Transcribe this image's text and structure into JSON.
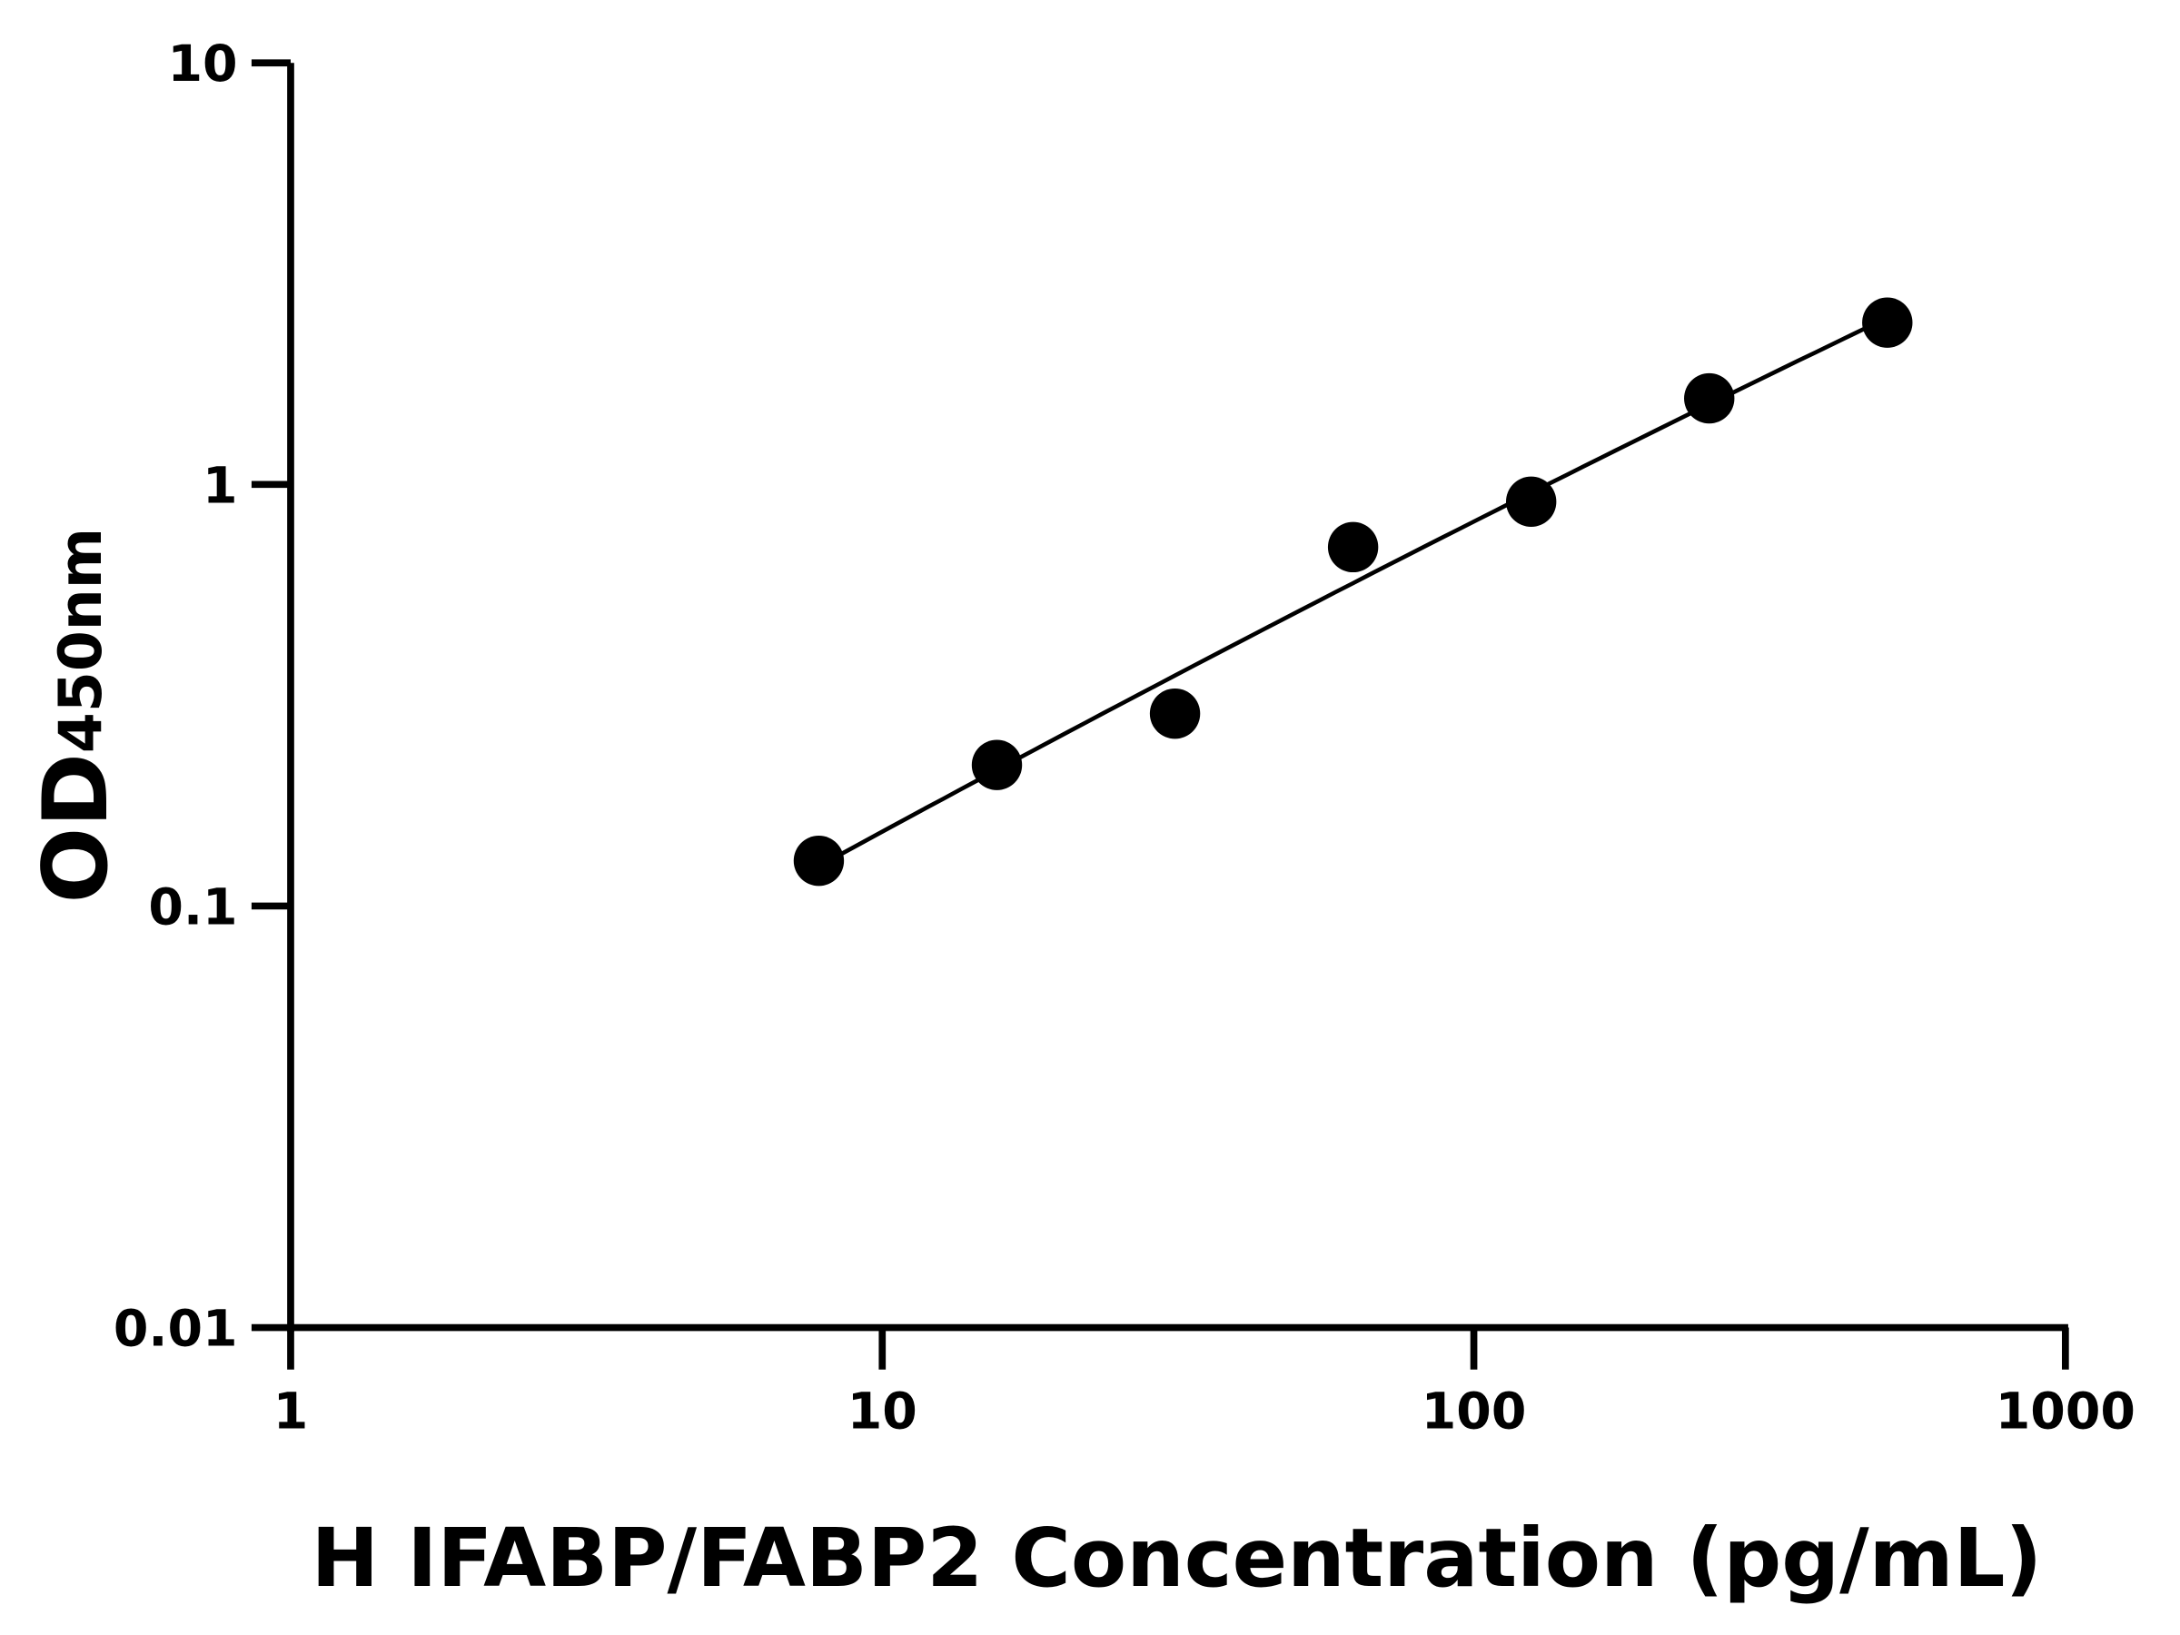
{
  "chart_data": {
    "type": "scatter",
    "title": "",
    "xlabel": "H IFABP/FABP2 Concentration (pg/mL)",
    "ylabel_main": "OD",
    "ylabel_sub": "450nm",
    "x_scale": "log",
    "y_scale": "log",
    "xlim": [
      1,
      1000
    ],
    "ylim": [
      0.01,
      10
    ],
    "x_ticks": [
      "1",
      "10",
      "100",
      "1000"
    ],
    "y_ticks": [
      "0.01",
      "0.1",
      "1",
      "10"
    ],
    "grid": false,
    "legend": "none",
    "fit_curve": true,
    "marker_color": "#000000",
    "series": [
      {
        "x": [
          7.8125,
          15.625,
          31.25,
          62.5,
          125,
          250,
          500
        ],
        "y": [
          0.128,
          0.216,
          0.286,
          0.71,
          0.91,
          1.6,
          2.42
        ]
      }
    ]
  }
}
